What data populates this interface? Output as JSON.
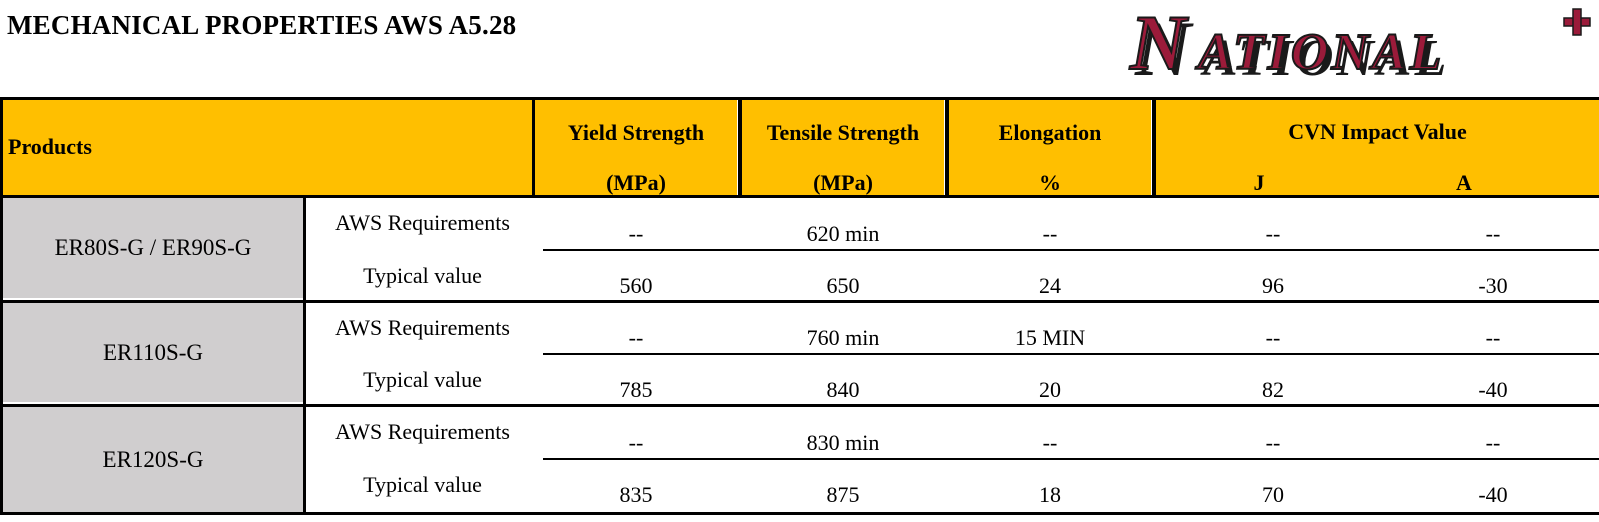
{
  "title": "MECHANICAL PROPERTIES AWS A5.28",
  "logo": {
    "text": "NATIONAL",
    "plus": "+",
    "colors": {
      "fill": "#9B1B3A",
      "shadow": "#1a1a1a",
      "outline": "#ffffff"
    }
  },
  "header": {
    "products": "Products",
    "yield": {
      "line1": "Yield Strength",
      "line2": "(MPa)"
    },
    "tensile": {
      "line1": "Tensile Strength",
      "line2": "(MPa)"
    },
    "elongation": {
      "line1": "Elongation",
      "line2": "%"
    },
    "cvn": {
      "line1": "CVN Impact Value",
      "j": "J",
      "a": "A"
    },
    "bg_color": "#FFBF00"
  },
  "products": [
    {
      "name": "ER80S-G / ER90S-G",
      "rows": [
        {
          "label": "AWS Requirements",
          "yield": "--",
          "tensile": "620 min",
          "elongation": "--",
          "j": "--",
          "a": "--"
        },
        {
          "label": "Typical value",
          "yield": "560",
          "tensile": "650",
          "elongation": "24",
          "j": "96",
          "a": "-30"
        }
      ]
    },
    {
      "name": "ER110S-G",
      "rows": [
        {
          "label": "AWS Requirements",
          "yield": "--",
          "tensile": "760 min",
          "elongation": "15 MIN",
          "j": "--",
          "a": "--"
        },
        {
          "label": "Typical value",
          "yield": "785",
          "tensile": "840",
          "elongation": "20",
          "j": "82",
          "a": "-40"
        }
      ]
    },
    {
      "name": "ER120S-G",
      "rows": [
        {
          "label": "AWS Requirements",
          "yield": "--",
          "tensile": "830 min",
          "elongation": "--",
          "j": "--",
          "a": "--"
        },
        {
          "label": "Typical value",
          "yield": "835",
          "tensile": "875",
          "elongation": "18",
          "j": "70",
          "a": "-40"
        }
      ]
    }
  ]
}
